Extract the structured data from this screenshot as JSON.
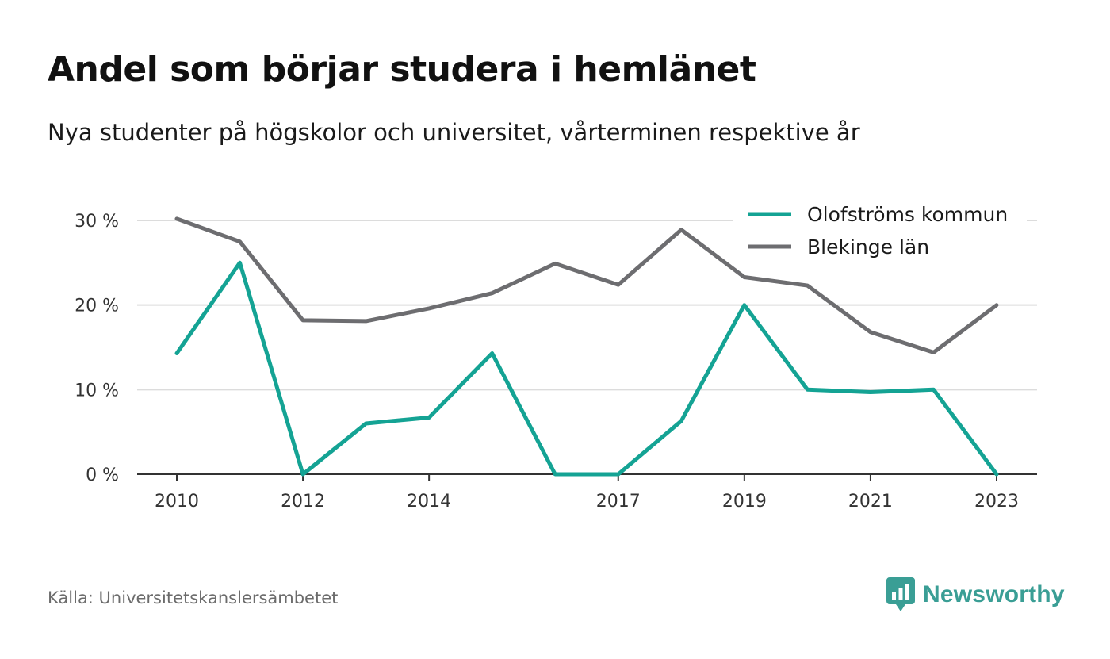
{
  "header": {
    "title": "Andel som börjar studera i hemlänet",
    "subtitle": "Nya studenter på högskolor och universitet, vårterminen respektive år"
  },
  "footer": {
    "source": "Källa: Universitetskanslersämbetet",
    "brand": "Newsworthy",
    "brand_icon": "bar-chart-speech-bubble-icon"
  },
  "colors": {
    "series_0": "#14a394",
    "series_1": "#6d6d70",
    "grid": "#dcdcdc",
    "axis": "#333333",
    "brand": "#3a9e95"
  },
  "chart_data": {
    "type": "line",
    "title": "Andel som börjar studera i hemlänet",
    "subtitle": "Nya studenter på högskolor och universitet, vårterminen respektive år",
    "xlabel": "",
    "ylabel": "",
    "x": [
      2010,
      2011,
      2012,
      2013,
      2014,
      2015,
      2016,
      2017,
      2018,
      2019,
      2020,
      2021,
      2022,
      2023
    ],
    "x_ticks": [
      2010,
      2012,
      2014,
      2017,
      2019,
      2021,
      2023
    ],
    "x_tick_labels": [
      "2010",
      "2012",
      "2014",
      "2017",
      "2019",
      "2021",
      "2023"
    ],
    "y_ticks": [
      0,
      10,
      20,
      30
    ],
    "y_tick_labels": [
      "0 %",
      "10 %",
      "20 %",
      "30 %"
    ],
    "ylim": [
      0,
      30
    ],
    "xlim": [
      2010,
      2023
    ],
    "grid": true,
    "legend_position": "top-right",
    "series": [
      {
        "name": "Olofströms kommun",
        "values": [
          14.3,
          25.0,
          0.0,
          6.0,
          6.7,
          14.3,
          0.0,
          0.0,
          6.3,
          20.0,
          10.0,
          9.7,
          10.0,
          0.0
        ]
      },
      {
        "name": "Blekinge län",
        "values": [
          30.2,
          27.5,
          18.2,
          18.1,
          19.6,
          21.4,
          24.9,
          22.4,
          28.9,
          23.3,
          22.3,
          16.8,
          14.4,
          20.0
        ]
      }
    ]
  }
}
